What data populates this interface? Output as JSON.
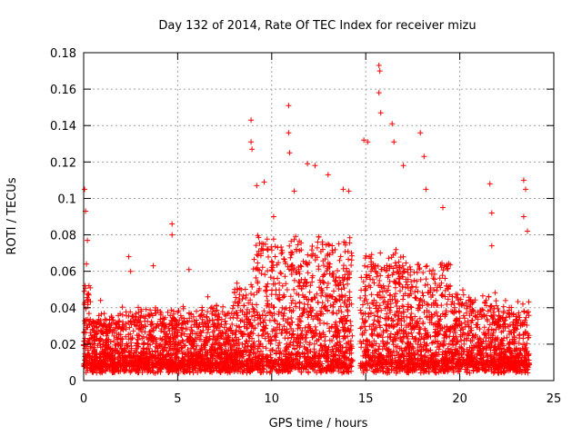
{
  "chart_data": {
    "type": "scatter",
    "title": "Day 132 of 2014, Rate Of TEC Index for receiver mizu",
    "xlabel": "GPS time / hours",
    "ylabel": "ROTI / TECUs",
    "xlim": [
      0,
      25
    ],
    "ylim": [
      0,
      0.18
    ],
    "x_ticks": [
      0,
      5,
      10,
      15,
      20,
      25
    ],
    "x_tick_labels": [
      "0",
      "5",
      "10",
      "15",
      "20",
      "25"
    ],
    "y_ticks": [
      0,
      0.02,
      0.04,
      0.06,
      0.08,
      0.1,
      0.12,
      0.14,
      0.16,
      0.18
    ],
    "y_tick_labels": [
      "0",
      "0.02",
      "0.04",
      "0.06",
      "0.08",
      "0.1",
      "0.12",
      "0.14",
      "0.16",
      "0.18"
    ],
    "grid": true,
    "marker": "+",
    "color": "#ff0000",
    "data_gap_hours": [
      14.3,
      14.7
    ],
    "peaks": [
      {
        "x": 0.05,
        "y": 0.105
      },
      {
        "x": 0.1,
        "y": 0.093
      },
      {
        "x": 0.2,
        "y": 0.077
      },
      {
        "x": 0.15,
        "y": 0.064
      },
      {
        "x": 0.9,
        "y": 0.044
      },
      {
        "x": 2.4,
        "y": 0.068
      },
      {
        "x": 2.5,
        "y": 0.06
      },
      {
        "x": 3.7,
        "y": 0.063
      },
      {
        "x": 4.7,
        "y": 0.086
      },
      {
        "x": 4.7,
        "y": 0.08
      },
      {
        "x": 5.6,
        "y": 0.061
      },
      {
        "x": 6.6,
        "y": 0.046
      },
      {
        "x": 8.9,
        "y": 0.143
      },
      {
        "x": 8.9,
        "y": 0.131
      },
      {
        "x": 8.95,
        "y": 0.127
      },
      {
        "x": 9.2,
        "y": 0.107
      },
      {
        "x": 9.6,
        "y": 0.109
      },
      {
        "x": 10.1,
        "y": 0.09
      },
      {
        "x": 10.9,
        "y": 0.151
      },
      {
        "x": 10.9,
        "y": 0.136
      },
      {
        "x": 10.95,
        "y": 0.125
      },
      {
        "x": 11.2,
        "y": 0.104
      },
      {
        "x": 11.9,
        "y": 0.119
      },
      {
        "x": 12.3,
        "y": 0.118
      },
      {
        "x": 13.0,
        "y": 0.113
      },
      {
        "x": 13.8,
        "y": 0.105
      },
      {
        "x": 14.1,
        "y": 0.104
      },
      {
        "x": 14.9,
        "y": 0.132
      },
      {
        "x": 15.1,
        "y": 0.131
      },
      {
        "x": 15.7,
        "y": 0.173
      },
      {
        "x": 15.75,
        "y": 0.17
      },
      {
        "x": 15.7,
        "y": 0.158
      },
      {
        "x": 15.8,
        "y": 0.147
      },
      {
        "x": 16.4,
        "y": 0.141
      },
      {
        "x": 16.5,
        "y": 0.131
      },
      {
        "x": 17.0,
        "y": 0.118
      },
      {
        "x": 17.9,
        "y": 0.136
      },
      {
        "x": 18.1,
        "y": 0.123
      },
      {
        "x": 18.2,
        "y": 0.105
      },
      {
        "x": 19.1,
        "y": 0.095
      },
      {
        "x": 21.6,
        "y": 0.108
      },
      {
        "x": 21.7,
        "y": 0.092
      },
      {
        "x": 21.7,
        "y": 0.074
      },
      {
        "x": 23.4,
        "y": 0.11
      },
      {
        "x": 23.5,
        "y": 0.105
      },
      {
        "x": 23.4,
        "y": 0.09
      },
      {
        "x": 23.6,
        "y": 0.082
      }
    ]
  }
}
